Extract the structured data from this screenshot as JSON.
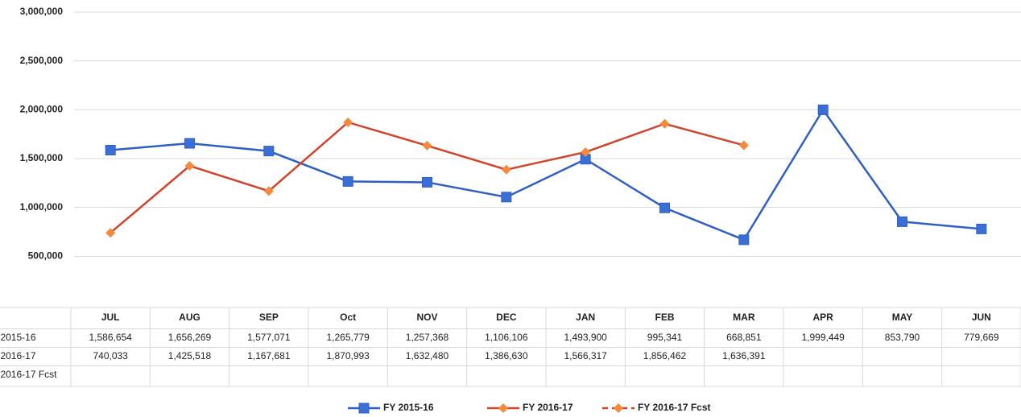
{
  "chart_data": {
    "type": "line",
    "categories": [
      "JUL",
      "AUG",
      "SEP",
      "Oct",
      "NOV",
      "DEC",
      "JAN",
      "FEB",
      "MAR",
      "APR",
      "MAY",
      "JUN"
    ],
    "series": [
      {
        "name": "FY 2015-16",
        "color": "#2f5fc4",
        "marker_color": "#3a6fd8",
        "marker": "square",
        "dashed": false,
        "values": [
          1586654,
          1656269,
          1577071,
          1265779,
          1257368,
          1106106,
          1493900,
          995341,
          668851,
          1999449,
          853790,
          779669
        ],
        "value_labels": [
          "1,586,654",
          "1,656,269",
          "1,577,071",
          "1,265,779",
          "1,257,368",
          "1,106,106",
          "1,493,900",
          "995,341",
          "668,851",
          "1,999,449",
          "853,790",
          "779,669"
        ]
      },
      {
        "name": "FY 2016-17",
        "color": "#d1432a",
        "marker_color": "#f58a3c",
        "marker": "diamond",
        "dashed": false,
        "values": [
          740033,
          1425518,
          1167681,
          1870993,
          1632480,
          1386630,
          1566317,
          1856462,
          1636391,
          null,
          null,
          null
        ],
        "value_labels": [
          "740,033",
          "1,425,518",
          "1,167,681",
          "1,870,993",
          "1,632,480",
          "1,386,630",
          "1,566,317",
          "1,856,462",
          "1,636,391",
          null,
          null,
          null
        ]
      },
      {
        "name": "FY 2016-17 Fcst",
        "color": "#d1432a",
        "marker_color": "#f58a3c",
        "marker": "diamond",
        "dashed": true,
        "values": [
          null,
          null,
          null,
          null,
          null,
          null,
          null,
          null,
          null,
          null,
          null,
          null
        ]
      }
    ],
    "ylim": [
      0,
      3000000
    ],
    "yticks": [
      {
        "value": 500000,
        "label": "500,000"
      },
      {
        "value": 1000000,
        "label": "1,000,000"
      },
      {
        "value": 1500000,
        "label": "1,500,000"
      },
      {
        "value": 2000000,
        "label": "2,000,000"
      },
      {
        "value": 2500000,
        "label": "2,500,000"
      },
      {
        "value": 3000000,
        "label": "3,000,000"
      }
    ],
    "grid": true,
    "legend": "bottom"
  }
}
